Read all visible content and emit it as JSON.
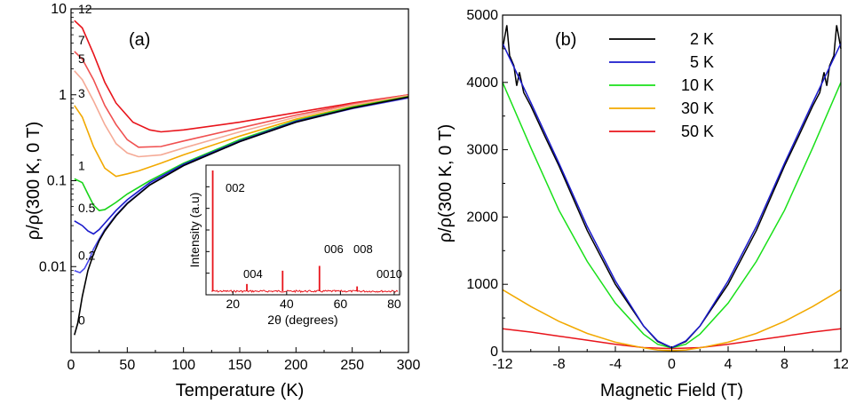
{
  "chart_data": [
    {
      "type": "line",
      "panel_label": "(a)",
      "xlabel": "Temperature (K)",
      "ylabel": "ρ/ρ(300 K, 0 T)",
      "xlim": [
        0,
        300
      ],
      "ylim": [
        0.001,
        10
      ],
      "yscale": "log",
      "x_ticks": [
        0,
        50,
        100,
        150,
        200,
        250,
        300
      ],
      "y_ticks": [
        {
          "value": 0.01,
          "label": "0.01"
        },
        {
          "value": 0.1,
          "label": "0.1"
        },
        {
          "value": 1,
          "label": "1"
        },
        {
          "value": 10,
          "label": "10"
        }
      ],
      "series": [
        {
          "name": "12",
          "color": "#e8141b",
          "x": [
            3,
            10,
            20,
            30,
            40,
            55,
            70,
            80,
            100,
            150,
            200,
            250,
            300
          ],
          "y": [
            7.3,
            6.0,
            3.0,
            1.4,
            0.8,
            0.48,
            0.39,
            0.37,
            0.39,
            0.48,
            0.62,
            0.8,
            1.0
          ]
        },
        {
          "name": "7",
          "color": "#f05050",
          "x": [
            3,
            10,
            20,
            30,
            40,
            50,
            60,
            80,
            100,
            150,
            200,
            250,
            300
          ],
          "y": [
            3.2,
            2.6,
            1.5,
            0.75,
            0.45,
            0.3,
            0.245,
            0.25,
            0.29,
            0.41,
            0.58,
            0.78,
            1.0
          ]
        },
        {
          "name": "5",
          "color": "#f5aa96",
          "x": [
            3,
            10,
            20,
            30,
            40,
            50,
            60,
            80,
            100,
            150,
            200,
            250,
            300
          ],
          "y": [
            1.9,
            1.5,
            0.85,
            0.45,
            0.27,
            0.21,
            0.19,
            0.2,
            0.24,
            0.37,
            0.55,
            0.76,
            0.98
          ]
        },
        {
          "name": "3",
          "color": "#f2a900",
          "x": [
            3,
            10,
            20,
            30,
            40,
            50,
            60,
            80,
            100,
            150,
            200,
            250,
            300
          ],
          "y": [
            0.75,
            0.55,
            0.25,
            0.14,
            0.112,
            0.12,
            0.13,
            0.16,
            0.2,
            0.33,
            0.52,
            0.73,
            0.96
          ]
        },
        {
          "name": "1",
          "color": "#19d419",
          "x": [
            3,
            10,
            15,
            20,
            25,
            30,
            40,
            50,
            70,
            100,
            150,
            200,
            250,
            300
          ],
          "y": [
            0.105,
            0.095,
            0.07,
            0.052,
            0.045,
            0.046,
            0.056,
            0.07,
            0.1,
            0.16,
            0.3,
            0.5,
            0.72,
            0.95
          ]
        },
        {
          "name": "0.5",
          "color": "#1a1acc",
          "x": [
            3,
            10,
            15,
            20,
            25,
            30,
            40,
            50,
            70,
            100,
            150,
            200,
            250,
            300
          ],
          "y": [
            0.034,
            0.03,
            0.026,
            0.024,
            0.027,
            0.032,
            0.045,
            0.06,
            0.095,
            0.155,
            0.29,
            0.49,
            0.7,
            0.93
          ]
        },
        {
          "name": "0.2",
          "color": "#4a4aee",
          "x": [
            3,
            8,
            12,
            16,
            20,
            25,
            30,
            40,
            50,
            70,
            100,
            150,
            200,
            250,
            300
          ],
          "y": [
            0.009,
            0.0085,
            0.0095,
            0.012,
            0.016,
            0.021,
            0.027,
            0.04,
            0.055,
            0.09,
            0.15,
            0.285,
            0.48,
            0.69,
            0.92
          ]
        },
        {
          "name": "0",
          "color": "#000000",
          "x": [
            3,
            6,
            10,
            15,
            20,
            25,
            30,
            40,
            50,
            70,
            100,
            150,
            200,
            250,
            300
          ],
          "y": [
            0.0016,
            0.0022,
            0.0045,
            0.009,
            0.014,
            0.02,
            0.026,
            0.039,
            0.054,
            0.089,
            0.15,
            0.285,
            0.48,
            0.7,
            0.94
          ]
        }
      ],
      "inset": {
        "type": "line",
        "xlabel": "2θ (degrees)",
        "ylabel": "Intensity (a.u)",
        "xlim": [
          10,
          82
        ],
        "x_ticks": [
          20,
          40,
          60,
          80
        ],
        "color": "#e8141b",
        "peaks": [
          {
            "x": 12.5,
            "height": 1.0,
            "label": "002"
          },
          {
            "x": 25.2,
            "height": 0.06,
            "label": "004"
          },
          {
            "x": 38.5,
            "height": 0.17,
            "label": "006"
          },
          {
            "x": 52.2,
            "height": 0.21,
            "label": "008"
          },
          {
            "x": 66.2,
            "height": 0.04,
            "label": "0010"
          }
        ]
      }
    },
    {
      "type": "line",
      "panel_label": "(b)",
      "xlabel": "Magnetic Field (T)",
      "ylabel": "ρ/ρ(300 K, 0 T)",
      "xlim": [
        -12,
        12
      ],
      "ylim": [
        0,
        5000
      ],
      "x_ticks": [
        -12,
        -8,
        -4,
        0,
        4,
        8,
        12
      ],
      "y_ticks": [
        0,
        1000,
        2000,
        3000,
        4000,
        5000
      ],
      "legend_position": "top",
      "series": [
        {
          "name": "2 K",
          "color": "#000000",
          "x": [
            -12,
            -11.7,
            -11.5,
            -11.2,
            -11,
            -10.8,
            -10.5,
            -10,
            -9,
            -8,
            -6,
            -4,
            -2,
            -1,
            0,
            1,
            2,
            4,
            6,
            8,
            9,
            10,
            10.5,
            10.8,
            11,
            11.2,
            11.5,
            11.7,
            12
          ],
          "y": [
            4500,
            4850,
            4400,
            4250,
            3950,
            4150,
            3850,
            3650,
            3200,
            2760,
            1800,
            1000,
            380,
            150,
            60,
            150,
            380,
            1000,
            1800,
            2760,
            3200,
            3650,
            3850,
            4150,
            3950,
            4250,
            4400,
            4850,
            4500
          ]
        },
        {
          "name": "5 K",
          "color": "#1a1acc",
          "x": [
            -12,
            -10,
            -8,
            -6,
            -4,
            -2,
            -1,
            0,
            1,
            2,
            4,
            6,
            8,
            10,
            12
          ],
          "y": [
            4580,
            3700,
            2800,
            1860,
            1050,
            380,
            160,
            60,
            160,
            380,
            1050,
            1860,
            2800,
            3700,
            4580
          ]
        },
        {
          "name": "10 K",
          "color": "#19e019",
          "x": [
            -12,
            -10,
            -8,
            -6,
            -4,
            -2,
            -1,
            0,
            1,
            2,
            4,
            6,
            8,
            10,
            12
          ],
          "y": [
            4000,
            3030,
            2100,
            1340,
            720,
            260,
            110,
            55,
            110,
            260,
            720,
            1340,
            2100,
            3030,
            4000
          ]
        },
        {
          "name": "30 K",
          "color": "#f2a900",
          "x": [
            -12,
            -10,
            -8,
            -6,
            -4,
            -2,
            -1,
            0,
            1,
            2,
            4,
            6,
            8,
            10,
            12
          ],
          "y": [
            920,
            670,
            450,
            270,
            140,
            55,
            25,
            15,
            25,
            55,
            140,
            270,
            450,
            670,
            920
          ]
        },
        {
          "name": "50 K",
          "color": "#e8141b",
          "x": [
            -12,
            -10,
            -8,
            -6,
            -4,
            -2,
            0,
            2,
            4,
            6,
            8,
            10,
            12
          ],
          "y": [
            340,
            290,
            230,
            170,
            110,
            60,
            45,
            60,
            110,
            170,
            230,
            290,
            340
          ]
        }
      ]
    }
  ]
}
